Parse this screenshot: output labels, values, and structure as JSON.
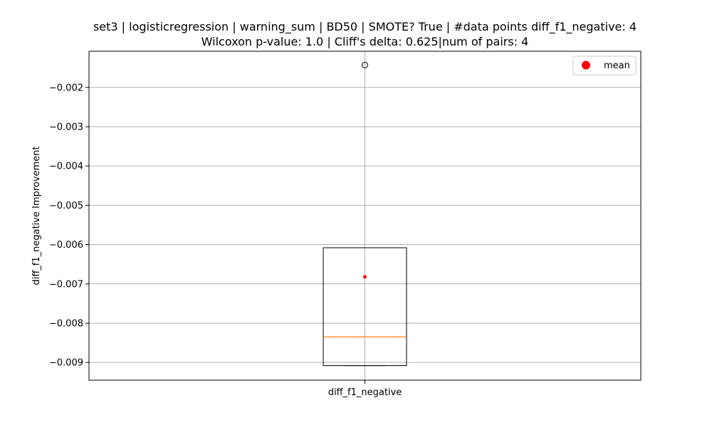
{
  "chart_data": {
    "type": "box",
    "title": "set3 | logisticregression | warning_sum | BD50 | SMOTE? True | #data points diff_f1_negative: 4",
    "subtitle": "Wilcoxon p-value: 1.0 | Cliff's delta: 0.625|num of pairs: 4",
    "xlabel": "",
    "ylabel": "diff_f1_negative Improvement",
    "categories": [
      "diff_f1_negative"
    ],
    "box": {
      "whisker_low": -0.00908,
      "q1": -0.00908,
      "median": -0.00835,
      "q3": -0.00608,
      "whisker_high": -0.00608,
      "mean": -0.00682,
      "outliers": [
        -0.00143
      ]
    },
    "ylim": [
      -0.00945,
      -0.00108
    ],
    "yticks": [
      -0.009,
      -0.008,
      -0.007,
      -0.006,
      -0.005,
      -0.004,
      -0.003,
      -0.002
    ],
    "ytick_labels": [
      "−0.009",
      "−0.008",
      "−0.007",
      "−0.006",
      "−0.005",
      "−0.004",
      "−0.003",
      "−0.002"
    ],
    "grid": true,
    "legend": {
      "position": "upper-right",
      "entries": [
        "mean"
      ]
    },
    "colors": {
      "median": "#ff7f0e",
      "mean": "#ff0000",
      "grid": "#b0b0b0",
      "box": "#000000"
    }
  }
}
